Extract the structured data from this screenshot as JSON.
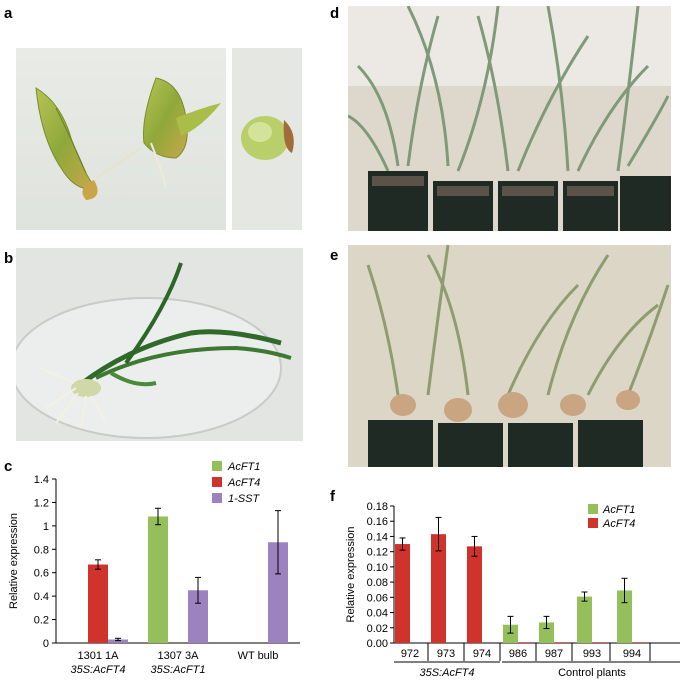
{
  "panels": {
    "a": "a",
    "b": "b",
    "c": "c",
    "d": "d",
    "e": "e",
    "f": "f"
  },
  "chart_data": [
    {
      "type": "bar",
      "panel": "c",
      "ylabel": "Relative expression",
      "ylim": [
        0,
        1.4
      ],
      "yticks": [
        "0",
        "0.2",
        "0.4",
        "0.6",
        "0.8",
        "1",
        "1.2",
        "1.4"
      ],
      "groups": [
        {
          "label": "1301 1A",
          "sublabel": "35S:AcFT4"
        },
        {
          "label": "1307 3A",
          "sublabel": "35S:AcFT1"
        },
        {
          "label": "WT bulb",
          "sublabel": ""
        }
      ],
      "series": [
        {
          "name": "AcFT1",
          "color": "#95bf5a",
          "values": [
            0,
            1.08,
            0
          ],
          "errors": [
            0,
            0.07,
            0
          ]
        },
        {
          "name": "AcFT4",
          "color": "#d0332c",
          "values": [
            0.67,
            0,
            0
          ],
          "errors": [
            0.04,
            0,
            0
          ]
        },
        {
          "name": "1-SST",
          "color": "#9c83c0",
          "values": [
            0.03,
            0.45,
            0.86
          ],
          "errors": [
            0.01,
            0.11,
            0.27
          ]
        }
      ],
      "legend_position": "top-right"
    },
    {
      "type": "bar",
      "panel": "f",
      "ylabel": "Relative expression",
      "ylim": [
        0,
        0.18
      ],
      "yticks": [
        "0.00",
        "0.02",
        "0.04",
        "0.06",
        "0.08",
        "0.10",
        "0.12",
        "0.14",
        "0.16",
        "0.18"
      ],
      "categories": [
        "972",
        "973",
        "974",
        "986",
        "987",
        "993",
        "994"
      ],
      "group_labels": [
        {
          "label": "35S:AcFT4",
          "italic": true
        },
        {
          "label": "Control plants",
          "italic": false
        }
      ],
      "series": [
        {
          "name": "AcFT1",
          "color": "#95bf5a",
          "values": [
            0,
            0,
            0,
            0.024,
            0.027,
            0.061,
            0.069
          ],
          "errors": [
            0,
            0,
            0,
            0.011,
            0.008,
            0.006,
            0.016
          ]
        },
        {
          "name": "AcFT4",
          "color": "#d0332c",
          "values": [
            0.13,
            0.143,
            0.127,
            0.001,
            0.001,
            0.001,
            0.001
          ],
          "errors": [
            0.008,
            0.022,
            0.013,
            0,
            0,
            0,
            0
          ]
        }
      ],
      "legend_position": "top-right"
    }
  ]
}
